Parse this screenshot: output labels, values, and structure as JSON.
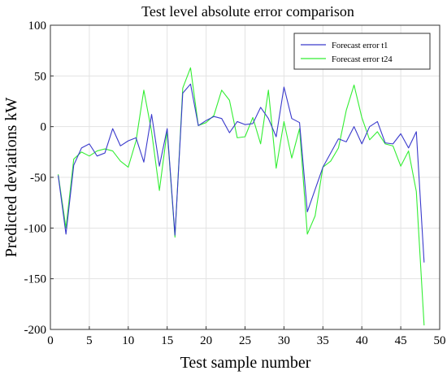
{
  "chart_data": {
    "type": "line",
    "title": "Test level absolute error comparison",
    "xlabel": "Test sample number",
    "ylabel": "Predicted deviations  kW",
    "xlim": [
      0,
      50
    ],
    "ylim": [
      -200,
      100
    ],
    "xticks": [
      0,
      5,
      10,
      15,
      20,
      25,
      30,
      35,
      40,
      45,
      50
    ],
    "yticks": [
      100,
      50,
      0,
      -50,
      -100,
      -150,
      -200
    ],
    "grid": true,
    "legend_position": "top-right",
    "x": [
      1,
      2,
      3,
      4,
      5,
      6,
      7,
      8,
      9,
      10,
      11,
      12,
      13,
      14,
      15,
      16,
      17,
      18,
      19,
      20,
      21,
      22,
      23,
      24,
      25,
      26,
      27,
      28,
      29,
      30,
      31,
      32,
      33,
      34,
      35,
      36,
      37,
      38,
      39,
      40,
      41,
      42,
      43,
      44,
      45,
      46,
      47,
      48
    ],
    "series": [
      {
        "name": "Forecast error t1",
        "color": "#3a3acc",
        "values": [
          -48,
          -106,
          -38,
          -21,
          -17,
          -29,
          -26,
          -2,
          -19,
          -14,
          -11,
          -35,
          12,
          -39,
          -2,
          -107,
          33,
          42,
          1,
          6,
          10,
          8,
          -6,
          5,
          2,
          3,
          19,
          8,
          -10,
          39,
          8,
          4,
          -84,
          -62,
          -40,
          -26,
          -12,
          -15,
          0,
          -17,
          0,
          5,
          -16,
          -17,
          -7,
          -21,
          -5,
          -134
        ]
      },
      {
        "name": "Forecast error t24",
        "color": "#33ee33",
        "values": [
          -47,
          -100,
          -32,
          -25,
          -29,
          -24,
          -22,
          -24,
          -34,
          -40,
          -14,
          36,
          -5,
          -63,
          -4,
          -109,
          38,
          58,
          1,
          4,
          11,
          36,
          26,
          -11,
          -10,
          9,
          -17,
          36,
          -41,
          5,
          -31,
          -2,
          -106,
          -88,
          -40,
          -34,
          -21,
          16,
          41,
          9,
          -13,
          -5,
          -17,
          -19,
          -39,
          -24,
          -64,
          -196
        ]
      }
    ]
  }
}
